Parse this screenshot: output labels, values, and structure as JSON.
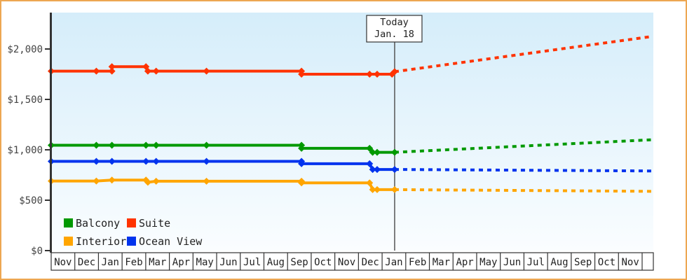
{
  "frame": {
    "border_color": "#EDA752",
    "background_color": "#FFFFFF"
  },
  "chart_data": {
    "type": "line",
    "title": "",
    "xlabel": "",
    "ylabel": "",
    "plot": {
      "background_top_color": "#D5EDFA",
      "background_bottom_color": "#FAFDFF",
      "axis_color": "#333333",
      "grid": "off",
      "legend_position": "bottom-left-inside"
    },
    "y_axis": {
      "tick_labels": [
        "$0",
        "$500",
        "$1,000",
        "$1,500",
        "$2,000"
      ],
      "tick_values": [
        0,
        500,
        1000,
        1500,
        2000
      ],
      "range": [
        0,
        2360
      ],
      "label_color": "#444444"
    },
    "x_axis": {
      "month_labels": [
        "Nov",
        "Dec",
        "Jan",
        "Feb",
        "Mar",
        "Apr",
        "May",
        "Jun",
        "Jul",
        "Aug",
        "Sep",
        "Oct",
        "Nov",
        "Dec",
        "Jan",
        "Feb",
        "Mar",
        "Apr",
        "May",
        "Jun",
        "Jul",
        "Aug",
        "Sep",
        "Oct",
        "Nov"
      ],
      "total_cells": 26,
      "label_color": "#222222"
    },
    "today_marker": {
      "line1": "Today",
      "line2": "Jan. 18",
      "month_position": 14.53,
      "line_color": "#555555",
      "box_fill": "#FFFFFF",
      "box_border": "#333333"
    },
    "series": [
      {
        "name": "Suite",
        "color": "#FF3300",
        "solid_points": [
          [
            0,
            1780
          ],
          [
            1.91,
            1780
          ],
          [
            2.57,
            1780
          ],
          [
            2.57,
            1825
          ],
          [
            4.01,
            1825
          ],
          [
            4.09,
            1780
          ],
          [
            4.44,
            1780
          ],
          [
            6.57,
            1780
          ],
          [
            10.59,
            1780
          ],
          [
            10.59,
            1750
          ],
          [
            13.47,
            1750
          ],
          [
            13.79,
            1750
          ],
          [
            14.42,
            1750
          ],
          [
            14.53,
            1775
          ]
        ],
        "projected_points": [
          [
            14.53,
            1775
          ],
          [
            25.44,
            2125
          ]
        ]
      },
      {
        "name": "Balcony",
        "color": "#009900",
        "solid_points": [
          [
            0,
            1045
          ],
          [
            1.91,
            1045
          ],
          [
            2.57,
            1045
          ],
          [
            4.01,
            1045
          ],
          [
            4.44,
            1045
          ],
          [
            6.57,
            1045
          ],
          [
            10.59,
            1045
          ],
          [
            10.59,
            1015
          ],
          [
            13.47,
            1015
          ],
          [
            13.6,
            975
          ],
          [
            13.79,
            975
          ],
          [
            14.53,
            975
          ]
        ],
        "projected_points": [
          [
            14.53,
            975
          ],
          [
            25.44,
            1100
          ]
        ]
      },
      {
        "name": "Ocean View",
        "color": "#0033EE",
        "solid_points": [
          [
            0,
            885
          ],
          [
            1.91,
            885
          ],
          [
            2.57,
            885
          ],
          [
            4.01,
            885
          ],
          [
            4.44,
            885
          ],
          [
            6.57,
            885
          ],
          [
            10.59,
            885
          ],
          [
            10.59,
            862
          ],
          [
            13.47,
            862
          ],
          [
            13.6,
            805
          ],
          [
            13.79,
            805
          ],
          [
            14.53,
            805
          ]
        ],
        "projected_points": [
          [
            14.53,
            805
          ],
          [
            25.44,
            790
          ]
        ]
      },
      {
        "name": "Interior",
        "color": "#FFA500",
        "solid_points": [
          [
            0,
            690
          ],
          [
            1.91,
            690
          ],
          [
            2.57,
            700
          ],
          [
            4.01,
            700
          ],
          [
            4.09,
            678
          ],
          [
            4.44,
            688
          ],
          [
            6.57,
            688
          ],
          [
            10.59,
            688
          ],
          [
            10.59,
            672
          ],
          [
            13.47,
            672
          ],
          [
            13.6,
            605
          ],
          [
            13.79,
            605
          ],
          [
            14.53,
            605
          ]
        ],
        "projected_points": [
          [
            14.53,
            605
          ],
          [
            25.44,
            588
          ]
        ]
      }
    ],
    "legend": {
      "rows": [
        [
          "Balcony",
          "Suite"
        ],
        [
          "Interior",
          "Ocean View"
        ]
      ],
      "text_color": "#222222"
    }
  }
}
